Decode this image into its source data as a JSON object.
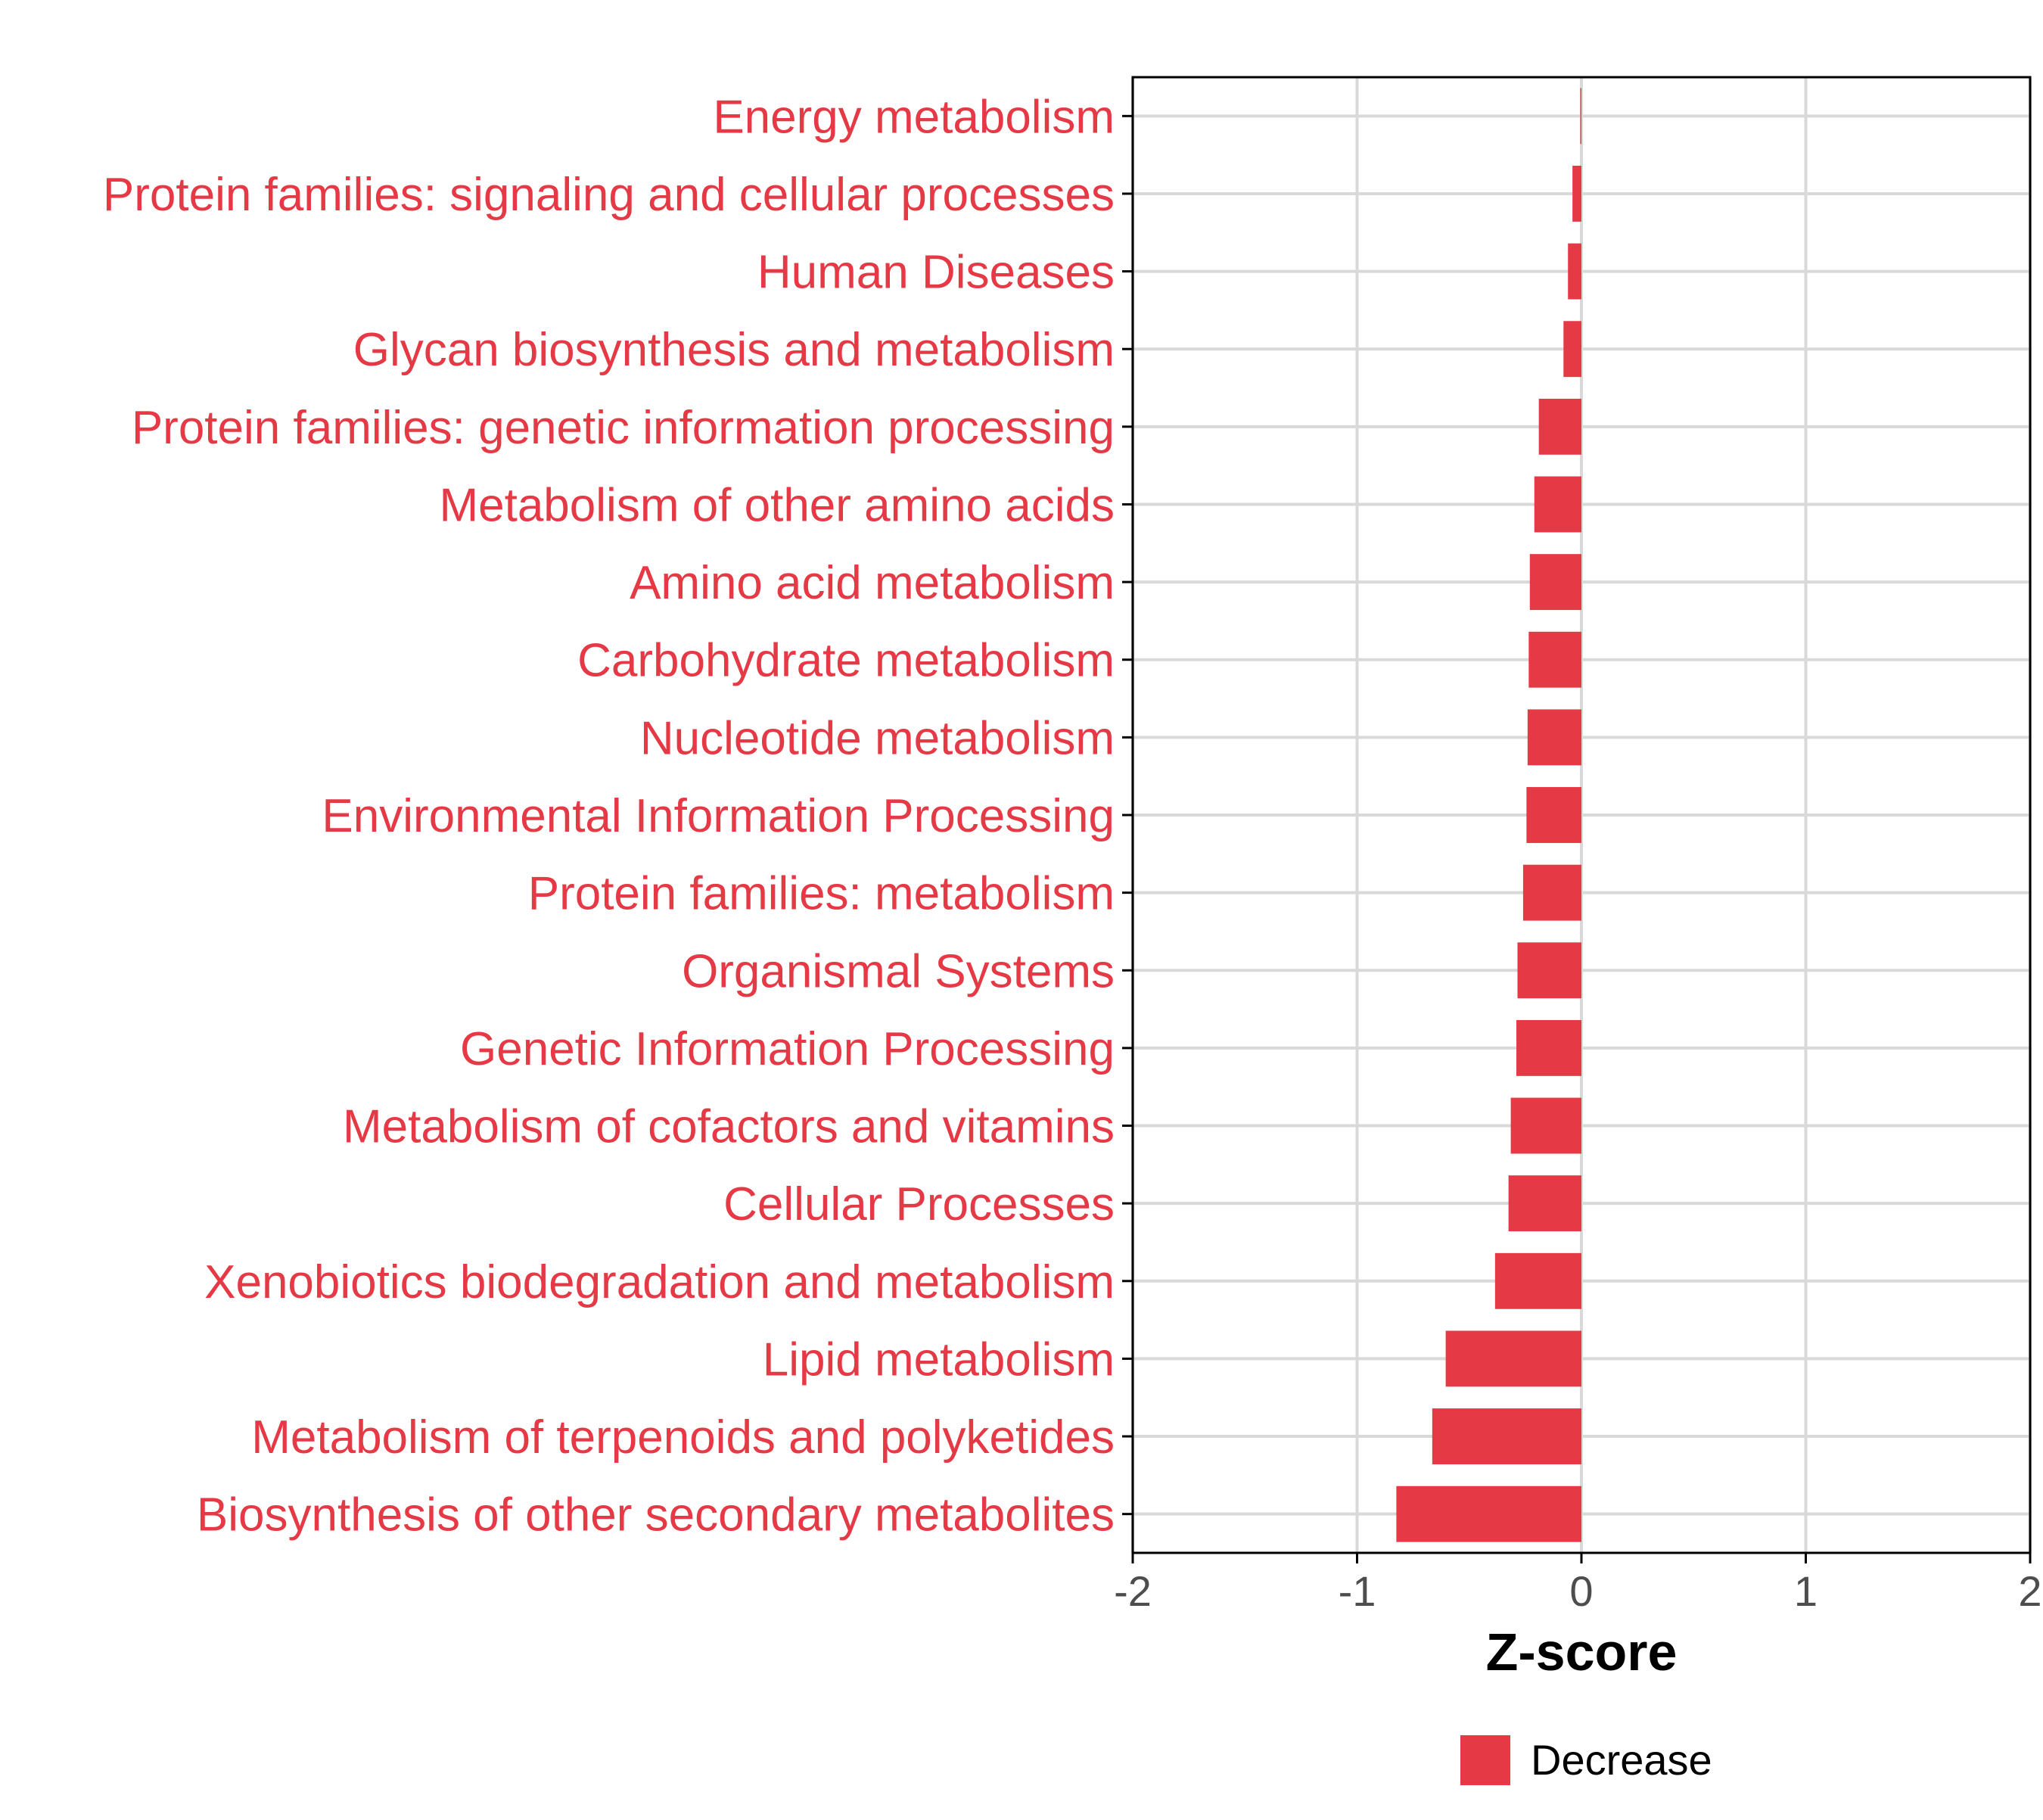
{
  "colors": {
    "bar": "#e63946",
    "grid": "#d9d9d9",
    "axis": "#000000",
    "label": "#e63946",
    "tick_text": "#4d4d4d"
  },
  "chart_data": {
    "type": "bar",
    "orientation": "horizontal",
    "title": "",
    "xlabel": "Z-score",
    "ylabel": "",
    "xlim": [
      -2,
      2
    ],
    "xticks": [
      -2,
      -1,
      0,
      1,
      2
    ],
    "xtick_labels": [
      "-2",
      "-1",
      "0",
      "1",
      "2"
    ],
    "grid": true,
    "legend": {
      "position": "bottom",
      "entries": [
        {
          "label": "Decrease",
          "color": "#e63946"
        }
      ]
    },
    "categories": [
      "Energy metabolism",
      "Protein families: signaling and cellular processes",
      "Human Diseases",
      "Glycan biosynthesis and metabolism",
      "Protein families: genetic information processing",
      "Metabolism of other amino acids",
      "Amino acid metabolism",
      "Carbohydrate metabolism",
      "Nucleotide metabolism",
      "Environmental Information Processing",
      "Protein families: metabolism",
      "Organismal Systems",
      "Genetic Information Processing",
      "Metabolism of cofactors and vitamins",
      "Cellular Processes",
      "Xenobiotics biodegradation and metabolism",
      "Lipid metabolism",
      "Metabolism of terpenoids and polyketides",
      "Biosynthesis of other secondary metabolites"
    ],
    "values": [
      -0.005,
      -0.04,
      -0.06,
      -0.08,
      -0.19,
      -0.21,
      -0.23,
      -0.235,
      -0.24,
      -0.245,
      -0.26,
      -0.285,
      -0.29,
      -0.315,
      -0.325,
      -0.385,
      -0.605,
      -0.665,
      -0.825
    ]
  }
}
